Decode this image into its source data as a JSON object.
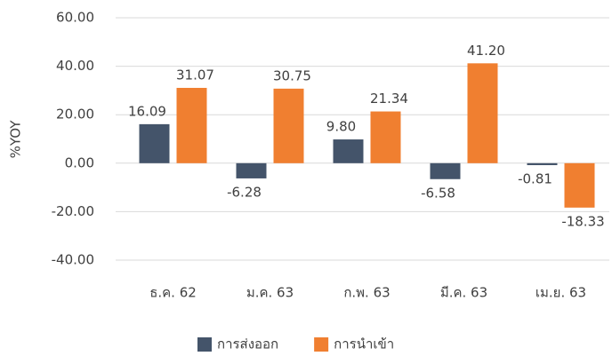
{
  "chart_data": {
    "type": "bar",
    "y_label": "%YOY",
    "categories": [
      "ธ.ค. 62",
      "ม.ค. 63",
      "ก.พ. 63",
      "มี.ค. 63",
      "เม.ย. 63"
    ],
    "series": [
      {
        "name": "การส่งออก",
        "color": "#44546a",
        "values": [
          16.09,
          -6.28,
          9.8,
          -6.58,
          -0.81
        ],
        "value_labels": [
          "16.09",
          "-6.28",
          "9.80",
          "-6.58",
          "-0.81"
        ]
      },
      {
        "name": "การนำเข้า",
        "color": "#f07f30",
        "values": [
          31.07,
          30.75,
          21.34,
          41.2,
          -18.33
        ],
        "value_labels": [
          "31.07",
          "30.75",
          "21.34",
          "41.20",
          "-18.33"
        ]
      }
    ],
    "ylim": [
      -40,
      60
    ],
    "yticks": [
      {
        "value": -40,
        "label": "-40.00"
      },
      {
        "value": -20,
        "label": "-20.00"
      },
      {
        "value": 0,
        "label": "0.00"
      },
      {
        "value": 20,
        "label": "20.00"
      },
      {
        "value": 40,
        "label": "40.00"
      },
      {
        "value": 60,
        "label": "60.00"
      }
    ],
    "grid": true,
    "legend": "bottom"
  }
}
